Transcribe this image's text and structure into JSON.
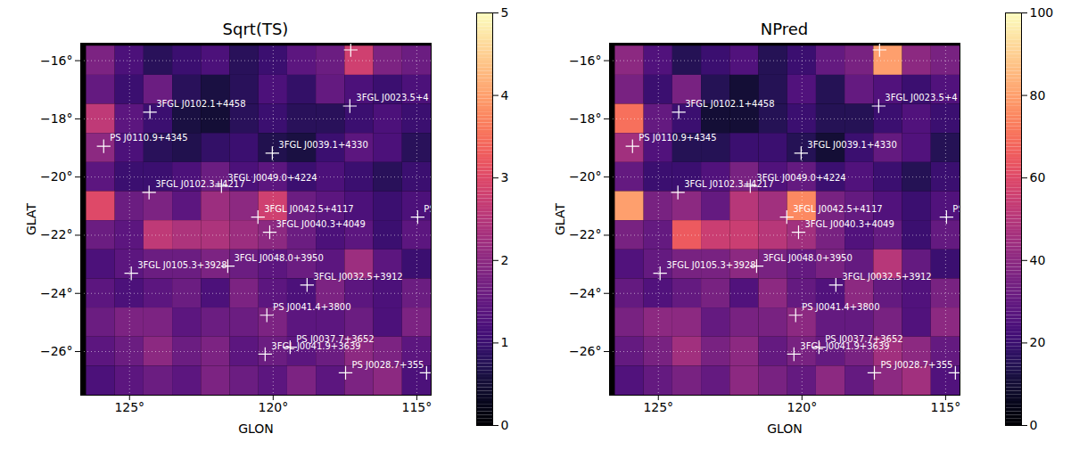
{
  "chart_data": [
    {
      "type": "heatmap",
      "title": "Sqrt(TS)",
      "x_label": "GLON",
      "y_label": "GLAT",
      "xlim": [
        126.7,
        114.5
      ],
      "ylim": [
        -27.5,
        -15.4
      ],
      "xticks": [
        {
          "value": 125,
          "label": "125°"
        },
        {
          "value": 120,
          "label": "120°"
        },
        {
          "value": 115,
          "label": "115°"
        }
      ],
      "yticks": [
        {
          "value": -16,
          "label": "−16°"
        },
        {
          "value": -18,
          "label": "−18°"
        },
        {
          "value": -20,
          "label": "−20°"
        },
        {
          "value": -22,
          "label": "−22°"
        },
        {
          "value": -24,
          "label": "−24°"
        },
        {
          "value": -26,
          "label": "−26°"
        }
      ],
      "grid": true,
      "marker": "plus",
      "cells": {
        "lon": [
          126,
          125,
          124,
          123,
          122,
          121,
          120,
          119,
          118,
          117,
          116,
          115
        ],
        "lat": [
          -16,
          -17,
          -18,
          -19,
          -20,
          -21,
          -22,
          -23,
          -24,
          -25,
          -26,
          -27
        ],
        "values": [
          [
            1.8,
            1.2,
            0.8,
            1.0,
            1.2,
            0.8,
            1.0,
            1.4,
            1.6,
            2.8,
            1.8,
            1.6
          ],
          [
            1.5,
            1.0,
            1.6,
            0.8,
            0.6,
            0.8,
            1.2,
            0.9,
            1.5,
            1.2,
            1.0,
            1.2
          ],
          [
            2.6,
            1.4,
            1.0,
            0.6,
            0.5,
            0.8,
            1.0,
            0.8,
            0.8,
            1.0,
            1.2,
            1.0
          ],
          [
            2.0,
            1.2,
            0.8,
            0.7,
            0.9,
            1.0,
            0.7,
            0.6,
            1.0,
            1.4,
            1.2,
            0.8
          ],
          [
            1.4,
            1.0,
            1.0,
            1.2,
            1.6,
            1.2,
            1.4,
            1.0,
            1.2,
            1.0,
            0.8,
            1.0
          ],
          [
            3.0,
            1.6,
            1.8,
            1.4,
            2.2,
            2.0,
            2.8,
            1.6,
            1.4,
            1.2,
            1.0,
            1.2
          ],
          [
            1.6,
            1.4,
            2.6,
            2.4,
            2.4,
            2.2,
            2.0,
            1.6,
            1.2,
            1.4,
            1.0,
            1.4
          ],
          [
            1.2,
            1.4,
            1.6,
            1.6,
            1.8,
            1.6,
            1.4,
            1.6,
            1.4,
            2.2,
            1.4,
            1.0
          ],
          [
            1.4,
            1.2,
            1.4,
            1.6,
            1.2,
            1.8,
            1.4,
            1.2,
            1.8,
            1.4,
            1.2,
            1.6
          ],
          [
            1.6,
            1.8,
            1.8,
            1.4,
            1.6,
            1.6,
            1.8,
            1.4,
            1.4,
            1.6,
            1.2,
            1.8
          ],
          [
            1.4,
            1.6,
            2.0,
            1.6,
            1.8,
            1.4,
            1.6,
            1.4,
            1.6,
            2.0,
            1.8,
            1.4
          ],
          [
            1.2,
            1.4,
            1.6,
            1.4,
            1.8,
            1.6,
            1.4,
            1.8,
            1.4,
            1.8,
            2.0,
            1.2
          ]
        ]
      },
      "colorbar": {
        "range": [
          0,
          5
        ],
        "ticks": [
          0,
          1,
          2,
          3,
          4,
          5
        ]
      },
      "sources": [
        {
          "name": "3FGL J0102.1+4458",
          "lon": 124.29,
          "lat": -17.77
        },
        {
          "name": "3FGL J0023.5+4",
          "lon": 117.33,
          "lat": -17.56
        },
        {
          "name": "PS J0110.9+4345",
          "lon": 125.9,
          "lat": -18.94
        },
        {
          "name": "3FGL J0039.1+4330",
          "lon": 120.03,
          "lat": -19.18
        },
        {
          "name": "3FGL J0102.3+4217",
          "lon": 124.32,
          "lat": -20.53
        },
        {
          "name": "3FGL J0049.0+4224",
          "lon": 121.8,
          "lat": -20.31
        },
        {
          "name": "3FGL J0042.5+4117",
          "lon": 120.53,
          "lat": -21.38
        },
        {
          "name": "3FGL J0040.3+4049",
          "lon": 120.12,
          "lat": -21.9
        },
        {
          "name": "PS",
          "lon": 114.97,
          "lat": -21.38
        },
        {
          "name": "3FGL J0048.0+3950",
          "lon": 121.58,
          "lat": -23.06
        },
        {
          "name": "3FGL J0032.5+3912",
          "lon": 118.82,
          "lat": -23.71
        },
        {
          "name": "3FGL J0105.3+3928",
          "lon": 124.94,
          "lat": -23.31
        },
        {
          "name": "PS J0041.4+3800",
          "lon": 120.22,
          "lat": -24.75
        },
        {
          "name": "PS J0037.7+3652",
          "lon": 119.41,
          "lat": -25.85
        },
        {
          "name": "3FGL J0041.9+3639",
          "lon": 120.28,
          "lat": -26.09
        },
        {
          "name": "PS J0028.7+355",
          "lon": 117.48,
          "lat": -26.73
        },
        {
          "name": null,
          "lon": 114.66,
          "lat": -26.73
        },
        {
          "name": null,
          "lon": 117.3,
          "lat": -15.63
        }
      ]
    },
    {
      "type": "heatmap",
      "title": "NPred",
      "x_label": "GLON",
      "y_label": "GLAT",
      "xlim": [
        126.7,
        114.5
      ],
      "ylim": [
        -27.5,
        -15.4
      ],
      "xticks": [
        {
          "value": 125,
          "label": "125°"
        },
        {
          "value": 120,
          "label": "120°"
        },
        {
          "value": 115,
          "label": "115°"
        }
      ],
      "yticks": [
        {
          "value": -16,
          "label": "−16°"
        },
        {
          "value": -18,
          "label": "−18°"
        },
        {
          "value": -20,
          "label": "−20°"
        },
        {
          "value": -22,
          "label": "−22°"
        },
        {
          "value": -24,
          "label": "−24°"
        },
        {
          "value": -26,
          "label": "−26°"
        }
      ],
      "grid": true,
      "marker": "plus",
      "cells": {
        "lon": [
          126,
          125,
          124,
          123,
          122,
          121,
          120,
          119,
          118,
          117,
          116,
          115
        ],
        "lat": [
          -16,
          -17,
          -18,
          -19,
          -20,
          -21,
          -22,
          -23,
          -24,
          -25,
          -26,
          -27
        ],
        "values": [
          [
            40,
            25,
            15,
            20,
            25,
            15,
            20,
            30,
            35,
            80,
            40,
            35
          ],
          [
            35,
            20,
            35,
            15,
            10,
            15,
            25,
            15,
            30,
            25,
            20,
            25
          ],
          [
            70,
            30,
            20,
            10,
            10,
            15,
            20,
            15,
            15,
            20,
            25,
            20
          ],
          [
            45,
            25,
            15,
            15,
            20,
            20,
            15,
            10,
            20,
            30,
            25,
            15
          ],
          [
            30,
            20,
            20,
            25,
            35,
            25,
            30,
            20,
            25,
            20,
            15,
            20
          ],
          [
            80,
            35,
            40,
            30,
            50,
            45,
            75,
            35,
            30,
            25,
            20,
            25
          ],
          [
            35,
            30,
            65,
            55,
            55,
            50,
            45,
            35,
            25,
            30,
            20,
            30
          ],
          [
            25,
            30,
            35,
            35,
            40,
            35,
            30,
            35,
            30,
            50,
            30,
            20
          ],
          [
            30,
            25,
            30,
            35,
            25,
            40,
            30,
            25,
            40,
            30,
            25,
            35
          ],
          [
            35,
            40,
            40,
            30,
            35,
            35,
            40,
            30,
            30,
            35,
            25,
            40
          ],
          [
            30,
            35,
            45,
            35,
            40,
            30,
            35,
            30,
            35,
            45,
            40,
            30
          ],
          [
            25,
            30,
            35,
            30,
            40,
            35,
            30,
            40,
            30,
            40,
            45,
            25
          ]
        ]
      },
      "colorbar": {
        "range": [
          0,
          100
        ],
        "ticks": [
          0,
          20,
          40,
          60,
          80,
          100
        ]
      },
      "sources": [
        {
          "name": "3FGL J0102.1+4458",
          "lon": 124.29,
          "lat": -17.77
        },
        {
          "name": "3FGL J0023.5+4",
          "lon": 117.33,
          "lat": -17.56
        },
        {
          "name": "PS J0110.9+4345",
          "lon": 125.9,
          "lat": -18.94
        },
        {
          "name": "3FGL J0039.1+4330",
          "lon": 120.03,
          "lat": -19.18
        },
        {
          "name": "3FGL J0102.3+4217",
          "lon": 124.32,
          "lat": -20.53
        },
        {
          "name": "3FGL J0049.0+4224",
          "lon": 121.8,
          "lat": -20.31
        },
        {
          "name": "3FGL J0042.5+4117",
          "lon": 120.53,
          "lat": -21.38
        },
        {
          "name": "3FGL J0040.3+4049",
          "lon": 120.12,
          "lat": -21.9
        },
        {
          "name": "PS",
          "lon": 114.97,
          "lat": -21.38
        },
        {
          "name": "3FGL J0048.0+3950",
          "lon": 121.58,
          "lat": -23.06
        },
        {
          "name": "3FGL J0032.5+3912",
          "lon": 118.82,
          "lat": -23.71
        },
        {
          "name": "3FGL J0105.3+3928",
          "lon": 124.94,
          "lat": -23.31
        },
        {
          "name": "PS J0041.4+3800",
          "lon": 120.22,
          "lat": -24.75
        },
        {
          "name": "PS J0037.7+3652",
          "lon": 119.41,
          "lat": -25.85
        },
        {
          "name": "3FGL J0041.9+3639",
          "lon": 120.28,
          "lat": -26.09
        },
        {
          "name": "PS J0028.7+355",
          "lon": 117.48,
          "lat": -26.73
        },
        {
          "name": null,
          "lon": 114.66,
          "lat": -26.73
        },
        {
          "name": null,
          "lon": 117.3,
          "lat": -15.63
        }
      ]
    }
  ]
}
